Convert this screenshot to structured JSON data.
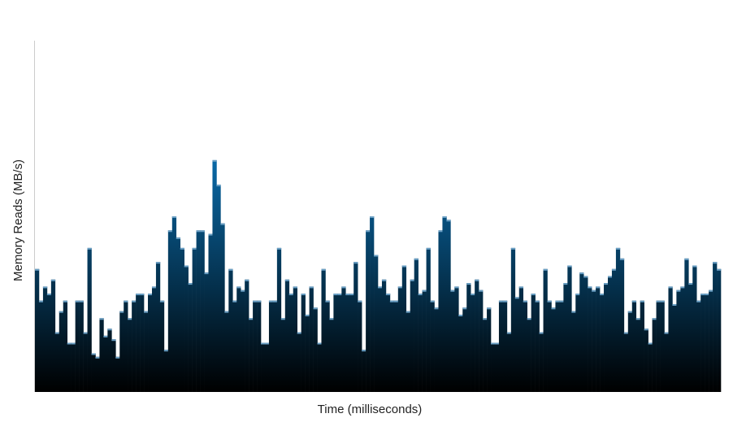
{
  "chart_data": {
    "type": "bar",
    "title": "",
    "xlabel": "Time (milliseconds)",
    "ylabel": "Memory Reads (MB/s)",
    "ylim": [
      0,
      100
    ],
    "grid": false,
    "legend": "none",
    "colors": {
      "bar_top": "#0a6aa8",
      "bar_bottom": "#000000",
      "cap": "#6a9fc4",
      "axis": "#cccccc"
    },
    "values": [
      35,
      26,
      30,
      28,
      32,
      17,
      23,
      26,
      14,
      14,
      26,
      26,
      17,
      41,
      11,
      10,
      21,
      16,
      18,
      15,
      10,
      23,
      26,
      21,
      26,
      28,
      28,
      23,
      28,
      30,
      37,
      26,
      12,
      46,
      50,
      44,
      41,
      36,
      31,
      41,
      46,
      46,
      34,
      45,
      66,
      59,
      48,
      23,
      35,
      26,
      30,
      29,
      32,
      21,
      26,
      26,
      14,
      14,
      26,
      26,
      41,
      21,
      32,
      28,
      30,
      17,
      28,
      22,
      30,
      24,
      14,
      35,
      26,
      21,
      28,
      28,
      30,
      28,
      28,
      37,
      26,
      12,
      46,
      50,
      39,
      30,
      32,
      28,
      26,
      26,
      30,
      36,
      23,
      32,
      38,
      28,
      29,
      41,
      26,
      24,
      46,
      50,
      49,
      29,
      30,
      22,
      24,
      31,
      28,
      32,
      29,
      21,
      24,
      14,
      14,
      26,
      26,
      17,
      41,
      27,
      30,
      26,
      21,
      28,
      26,
      17,
      35,
      26,
      24,
      26,
      26,
      31,
      36,
      23,
      28,
      34,
      33,
      30,
      29,
      30,
      28,
      31,
      33,
      35,
      41,
      38,
      17,
      23,
      26,
      21,
      26,
      18,
      14,
      21,
      26,
      26,
      17,
      30,
      25,
      29,
      30,
      38,
      31,
      36,
      26,
      28,
      28,
      29,
      37,
      35
    ]
  }
}
